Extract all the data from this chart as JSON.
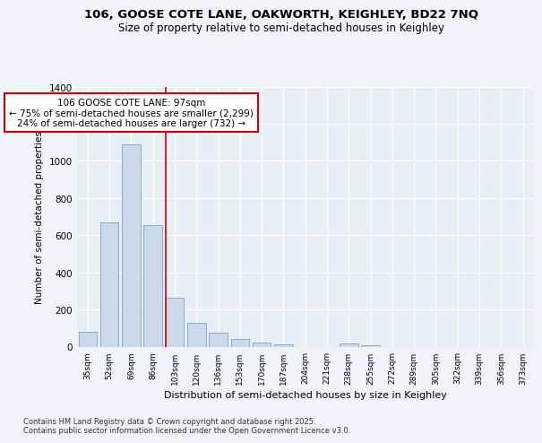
{
  "title_line1": "106, GOOSE COTE LANE, OAKWORTH, KEIGHLEY, BD22 7NQ",
  "title_line2": "Size of property relative to semi-detached houses in Keighley",
  "xlabel": "Distribution of semi-detached houses by size in Keighley",
  "ylabel": "Number of semi-detached properties",
  "categories": [
    "35sqm",
    "52sqm",
    "69sqm",
    "86sqm",
    "103sqm",
    "120sqm",
    "136sqm",
    "153sqm",
    "170sqm",
    "187sqm",
    "204sqm",
    "221sqm",
    "238sqm",
    "255sqm",
    "272sqm",
    "289sqm",
    "305sqm",
    "322sqm",
    "339sqm",
    "356sqm",
    "373sqm"
  ],
  "values": [
    80,
    670,
    1090,
    655,
    265,
    130,
    75,
    40,
    22,
    10,
    0,
    0,
    15,
    5,
    0,
    0,
    0,
    0,
    0,
    0,
    0
  ],
  "bar_color": "#ccd9ea",
  "bar_edge_color": "#85aecb",
  "vline_x_index": 4,
  "annotation_title": "106 GOOSE COTE LANE: 97sqm",
  "annotation_line1": "← 75% of semi-detached houses are smaller (2,299)",
  "annotation_line2": "24% of semi-detached houses are larger (732) →",
  "annotation_box_color": "#ffffff",
  "annotation_box_edge": "#cc0000",
  "vline_color": "#cc0000",
  "ylim": [
    0,
    1400
  ],
  "yticks": [
    0,
    200,
    400,
    600,
    800,
    1000,
    1200,
    1400
  ],
  "footer_line1": "Contains HM Land Registry data © Crown copyright and database right 2025.",
  "footer_line2": "Contains public sector information licensed under the Open Government Licence v3.0.",
  "bg_color": "#f0f4f8",
  "plot_bg_color": "#e8eef5"
}
